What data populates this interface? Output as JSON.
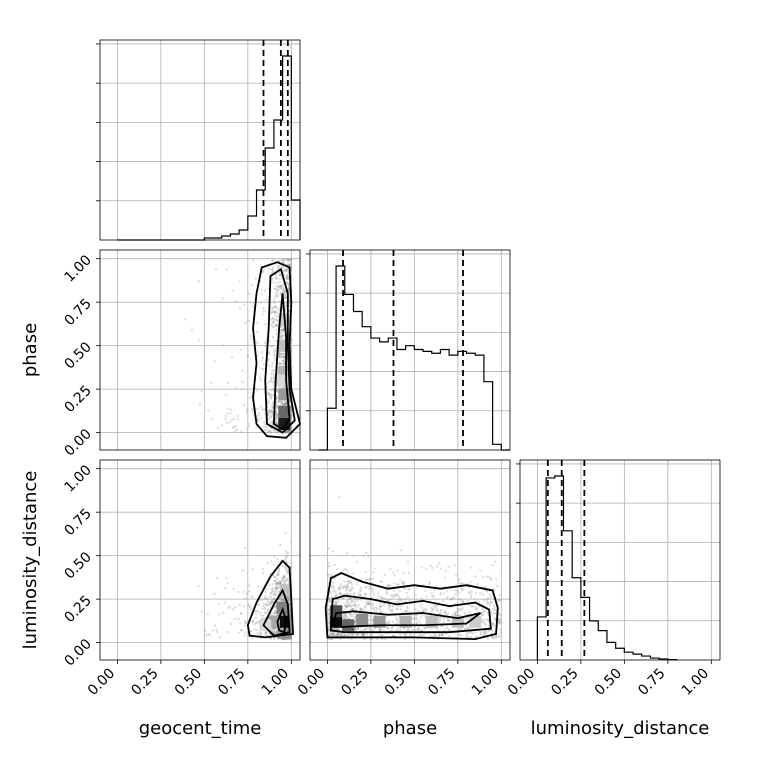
{
  "chart_data": {
    "type": "corner",
    "parameters": [
      "geocent_time",
      "phase",
      "luminosity_distance"
    ],
    "tick_labels": [
      "0.00",
      "0.25",
      "0.50",
      "0.75",
      "1.00"
    ],
    "axis_range": [
      -0.1,
      1.05
    ],
    "grid": true,
    "diagonal": [
      {
        "parameter": "geocent_time",
        "bin_edges": [
          0.0,
          0.05,
          0.1,
          0.15,
          0.2,
          0.25,
          0.3,
          0.35,
          0.4,
          0.45,
          0.5,
          0.55,
          0.6,
          0.65,
          0.7,
          0.75,
          0.8,
          0.85,
          0.9,
          0.95,
          1.0,
          1.05
        ],
        "counts": [
          0,
          0,
          0,
          0,
          0,
          0,
          0,
          0,
          0,
          0,
          0.01,
          0.01,
          0.02,
          0.03,
          0.05,
          0.12,
          0.25,
          0.46,
          0.6,
          0.92,
          0.2
        ],
        "quantiles": [
          0.84,
          0.94,
          0.98
        ]
      },
      {
        "parameter": "phase",
        "bin_edges": [
          -0.05,
          0.0,
          0.05,
          0.1,
          0.15,
          0.2,
          0.25,
          0.3,
          0.35,
          0.4,
          0.45,
          0.5,
          0.55,
          0.6,
          0.65,
          0.7,
          0.75,
          0.8,
          0.85,
          0.9,
          0.95,
          1.0,
          1.05
        ],
        "counts": [
          0.0,
          0.22,
          0.97,
          0.82,
          0.73,
          0.65,
          0.59,
          0.57,
          0.59,
          0.53,
          0.55,
          0.53,
          0.52,
          0.51,
          0.53,
          0.5,
          0.52,
          0.51,
          0.5,
          0.36,
          0.03,
          0.0
        ],
        "quantiles": [
          0.09,
          0.38,
          0.78
        ]
      },
      {
        "parameter": "luminosity_distance",
        "bin_edges": [
          0.0,
          0.05,
          0.1,
          0.15,
          0.2,
          0.25,
          0.3,
          0.35,
          0.4,
          0.45,
          0.5,
          0.55,
          0.6,
          0.65,
          0.7,
          0.75,
          0.8
        ],
        "counts": [
          0.22,
          0.93,
          0.94,
          0.66,
          0.42,
          0.32,
          0.2,
          0.15,
          0.09,
          0.06,
          0.04,
          0.03,
          0.02,
          0.01,
          0.005,
          0.002
        ],
        "quantiles": [
          0.06,
          0.14,
          0.27
        ]
      }
    ],
    "pairs": [
      {
        "x": "geocent_time",
        "y": "phase",
        "contours": [
          [
            [
              0.8,
              0.05
            ],
            [
              0.78,
              0.2
            ],
            [
              0.8,
              0.4
            ],
            [
              0.78,
              0.6
            ],
            [
              0.8,
              0.8
            ],
            [
              0.83,
              0.95
            ],
            [
              0.92,
              0.98
            ],
            [
              0.99,
              0.95
            ],
            [
              1.0,
              0.75
            ],
            [
              0.99,
              0.5
            ],
            [
              1.0,
              0.25
            ],
            [
              1.05,
              0.05
            ],
            [
              0.97,
              -0.03
            ],
            [
              0.86,
              -0.02
            ]
          ],
          [
            [
              0.86,
              0.05
            ],
            [
              0.85,
              0.3
            ],
            [
              0.87,
              0.6
            ],
            [
              0.88,
              0.9
            ],
            [
              0.94,
              0.94
            ],
            [
              0.98,
              0.8
            ],
            [
              0.98,
              0.5
            ],
            [
              0.99,
              0.25
            ],
            [
              1.02,
              0.07
            ],
            [
              0.95,
              0.0
            ]
          ],
          [
            [
              0.9,
              0.05
            ],
            [
              0.91,
              0.3
            ],
            [
              0.93,
              0.6
            ],
            [
              0.95,
              0.8
            ],
            [
              0.97,
              0.55
            ],
            [
              0.97,
              0.3
            ],
            [
              0.99,
              0.08
            ],
            [
              0.95,
              0.02
            ]
          ]
        ],
        "density": [
          [
            0.96,
            0.05,
            0.9
          ],
          [
            0.96,
            0.12,
            0.6
          ],
          [
            0.96,
            0.22,
            0.4
          ],
          [
            0.96,
            0.35,
            0.3
          ],
          [
            0.96,
            0.5,
            0.25
          ],
          [
            0.96,
            0.65,
            0.2
          ],
          [
            0.93,
            0.3,
            0.15
          ]
        ]
      },
      {
        "x": "geocent_time",
        "y": "luminosity_distance",
        "contours": [
          [
            [
              0.75,
              0.1
            ],
            [
              0.8,
              0.23
            ],
            [
              0.88,
              0.38
            ],
            [
              0.95,
              0.47
            ],
            [
              0.99,
              0.43
            ],
            [
              1.0,
              0.25
            ],
            [
              1.01,
              0.05
            ],
            [
              0.85,
              0.03
            ],
            [
              0.76,
              0.04
            ]
          ],
          [
            [
              0.84,
              0.1
            ],
            [
              0.9,
              0.22
            ],
            [
              0.95,
              0.3
            ],
            [
              0.98,
              0.22
            ],
            [
              0.99,
              0.06
            ],
            [
              0.9,
              0.04
            ]
          ],
          [
            [
              0.92,
              0.12
            ],
            [
              0.95,
              0.19
            ],
            [
              0.97,
              0.13
            ],
            [
              0.96,
              0.06
            ],
            [
              0.93,
              0.07
            ]
          ]
        ],
        "density": [
          [
            0.95,
            0.12,
            0.95
          ],
          [
            0.95,
            0.2,
            0.5
          ],
          [
            0.9,
            0.12,
            0.35
          ],
          [
            0.97,
            0.3,
            0.25
          ],
          [
            0.85,
            0.1,
            0.15
          ]
        ]
      },
      {
        "x": "phase",
        "y": "luminosity_distance",
        "contours": [
          [
            [
              0.0,
              0.03
            ],
            [
              -0.01,
              0.2
            ],
            [
              0.02,
              0.37
            ],
            [
              0.08,
              0.4
            ],
            [
              0.2,
              0.35
            ],
            [
              0.35,
              0.31
            ],
            [
              0.5,
              0.33
            ],
            [
              0.65,
              0.31
            ],
            [
              0.8,
              0.33
            ],
            [
              0.95,
              0.3
            ],
            [
              0.98,
              0.2
            ],
            [
              0.97,
              0.05
            ],
            [
              0.85,
              0.02
            ],
            [
              0.5,
              0.03
            ],
            [
              0.15,
              0.03
            ]
          ],
          [
            [
              0.02,
              0.07
            ],
            [
              0.03,
              0.25
            ],
            [
              0.1,
              0.27
            ],
            [
              0.25,
              0.25
            ],
            [
              0.4,
              0.22
            ],
            [
              0.55,
              0.24
            ],
            [
              0.7,
              0.21
            ],
            [
              0.85,
              0.23
            ],
            [
              0.93,
              0.19
            ],
            [
              0.94,
              0.08
            ],
            [
              0.7,
              0.06
            ],
            [
              0.4,
              0.06
            ],
            [
              0.1,
              0.06
            ]
          ],
          [
            [
              0.03,
              0.1
            ],
            [
              0.05,
              0.17
            ],
            [
              0.15,
              0.18
            ],
            [
              0.35,
              0.16
            ],
            [
              0.55,
              0.17
            ],
            [
              0.75,
              0.14
            ],
            [
              0.88,
              0.17
            ],
            [
              0.8,
              0.11
            ],
            [
              0.55,
              0.1
            ],
            [
              0.3,
              0.1
            ],
            [
              0.08,
              0.09
            ]
          ]
        ],
        "density": [
          [
            0.05,
            0.12,
            0.95
          ],
          [
            0.05,
            0.18,
            0.7
          ],
          [
            0.12,
            0.1,
            0.6
          ],
          [
            0.2,
            0.13,
            0.45
          ],
          [
            0.3,
            0.12,
            0.4
          ],
          [
            0.45,
            0.12,
            0.3
          ],
          [
            0.6,
            0.12,
            0.25
          ],
          [
            0.75,
            0.12,
            0.25
          ],
          [
            0.85,
            0.12,
            0.2
          ]
        ]
      }
    ]
  }
}
